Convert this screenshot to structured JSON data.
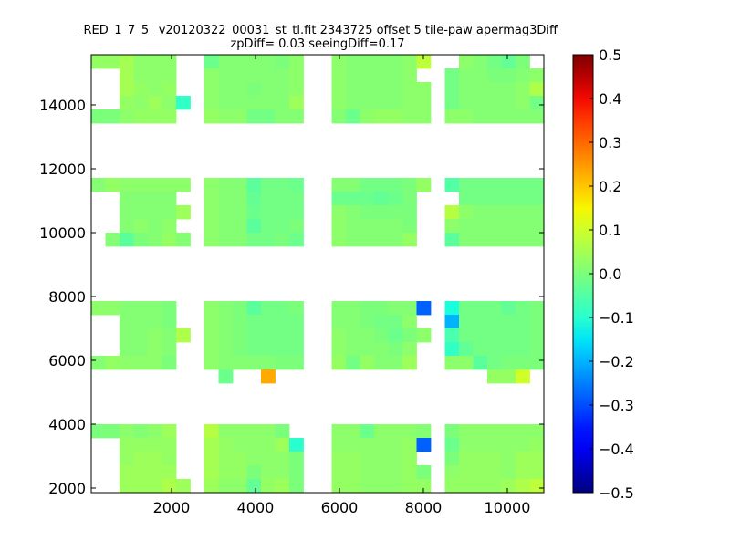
{
  "chart_data": {
    "type": "heatmap",
    "title": "_RED_1_7_5_ v20120322_00031_st_tl.fit 2343725 offset 5 tile-paw apermag3Diff",
    "subtitle": "zpDiff= 0.03 seeingDiff=0.17",
    "xlabel": "",
    "ylabel": "",
    "xlim": [
      87,
      10870
    ],
    "ylim": [
      1857,
      15571
    ],
    "xticks": [
      2000,
      4000,
      6000,
      8000,
      10000
    ],
    "yticks": [
      2000,
      4000,
      6000,
      8000,
      10000,
      12000,
      14000
    ],
    "xtick_labels": [
      "2000",
      "4000",
      "6000",
      "8000",
      "10000"
    ],
    "ytick_labels": [
      "2000",
      "4000",
      "6000",
      "8000",
      "10000",
      "12000",
      "14000"
    ],
    "colormap": "jet",
    "clim": [
      -0.5,
      0.5
    ],
    "colorbar_ticks": [
      0.5,
      0.4,
      0.3,
      0.2,
      0.1,
      0.0,
      -0.1,
      -0.2,
      -0.3,
      -0.4,
      -0.5
    ],
    "colorbar_tick_labels": [
      "0.5",
      "0.4",
      "0.3",
      "0.2",
      "0.1",
      "0.0",
      "−0.1",
      "−0.2",
      "−0.3",
      "−0.4",
      "−0.5"
    ],
    "grid_rows_order": "top-to-bottom",
    "grid": [
      [
        0.03,
        0.03,
        0.05,
        0.02,
        0.02,
        0.02,
        null,
        null,
        -0.02,
        0.01,
        0.01,
        0.01,
        0.01,
        0.0,
        0.02,
        null,
        null,
        0.02,
        0.01,
        0.01,
        0.01,
        0.01,
        0.02,
        0.08,
        null,
        null,
        0.02,
        0.01,
        -0.01,
        -0.03,
        0.0,
        null
      ],
      [
        null,
        null,
        0.05,
        0.02,
        0.02,
        0.02,
        null,
        null,
        0.02,
        0.01,
        0.01,
        0.01,
        0.01,
        0.01,
        0.02,
        null,
        null,
        0.02,
        0.01,
        0.01,
        0.01,
        0.01,
        0.02,
        null,
        null,
        -0.01,
        0.01,
        0.01,
        0.0,
        0.0,
        0.01,
        0.02
      ],
      [
        null,
        null,
        0.05,
        0.03,
        0.02,
        0.03,
        null,
        null,
        0.02,
        0.01,
        0.01,
        0.0,
        0.01,
        0.01,
        0.02,
        null,
        null,
        0.02,
        0.01,
        0.01,
        0.01,
        0.01,
        0.02,
        0.02,
        null,
        -0.01,
        0.01,
        0.01,
        0.01,
        0.01,
        0.02,
        0.06
      ],
      [
        null,
        null,
        0.03,
        0.02,
        0.04,
        0.02,
        -0.09,
        null,
        0.02,
        0.01,
        0.01,
        0.01,
        0.01,
        0.01,
        0.04,
        null,
        null,
        0.02,
        0.01,
        0.01,
        0.01,
        0.01,
        0.02,
        0.02,
        null,
        -0.01,
        0.01,
        0.01,
        0.01,
        0.01,
        0.02,
        -0.01
      ],
      [
        0.0,
        0.0,
        0.02,
        0.03,
        0.03,
        0.03,
        null,
        null,
        0.03,
        0.02,
        0.02,
        -0.01,
        -0.01,
        0.01,
        0.01,
        null,
        null,
        0.01,
        -0.02,
        0.02,
        0.03,
        0.03,
        0.02,
        0.02,
        null,
        0.02,
        0.02,
        0.01,
        0.01,
        0.01,
        0.01,
        0.01
      ],
      [
        null,
        null,
        null,
        null,
        null,
        null,
        null,
        null,
        null,
        null,
        null,
        null,
        null,
        null,
        null,
        null,
        null,
        null,
        null,
        null,
        null,
        null,
        null,
        null,
        null,
        null,
        null,
        null,
        null,
        null,
        null,
        null
      ],
      [
        null,
        null,
        null,
        null,
        null,
        null,
        null,
        null,
        null,
        null,
        null,
        null,
        null,
        null,
        null,
        null,
        null,
        null,
        null,
        null,
        null,
        null,
        null,
        null,
        null,
        null,
        null,
        null,
        null,
        null,
        null,
        null
      ],
      [
        null,
        null,
        null,
        null,
        null,
        null,
        null,
        null,
        null,
        null,
        null,
        null,
        null,
        null,
        null,
        null,
        null,
        null,
        null,
        null,
        null,
        null,
        null,
        null,
        null,
        null,
        null,
        null,
        null,
        null,
        null,
        null
      ],
      [
        null,
        null,
        null,
        null,
        null,
        null,
        null,
        null,
        null,
        null,
        null,
        null,
        null,
        null,
        null,
        null,
        null,
        null,
        null,
        null,
        null,
        null,
        null,
        null,
        null,
        null,
        null,
        null,
        null,
        null,
        null,
        null
      ],
      [
        0.01,
        0.03,
        0.02,
        0.02,
        0.02,
        0.02,
        0.02,
        null,
        0.02,
        0.01,
        0.01,
        -0.04,
        -0.01,
        -0.01,
        -0.02,
        null,
        null,
        0.01,
        0.01,
        -0.01,
        -0.01,
        -0.01,
        0.0,
        0.03,
        null,
        -0.05,
        -0.01,
        -0.01,
        -0.01,
        -0.01,
        -0.01,
        -0.01
      ],
      [
        null,
        null,
        0.01,
        0.01,
        0.01,
        0.01,
        null,
        null,
        0.02,
        0.01,
        0.01,
        -0.03,
        -0.01,
        -0.01,
        -0.01,
        null,
        null,
        -0.02,
        -0.02,
        -0.02,
        -0.03,
        -0.02,
        0.0,
        null,
        null,
        null,
        -0.01,
        -0.01,
        -0.01,
        -0.01,
        -0.01,
        -0.01
      ],
      [
        null,
        null,
        0.01,
        0.01,
        0.01,
        0.01,
        0.04,
        null,
        0.02,
        0.01,
        0.01,
        -0.02,
        -0.01,
        -0.01,
        -0.01,
        null,
        null,
        0.02,
        0.01,
        0.0,
        0.0,
        0.0,
        0.0,
        null,
        null,
        0.07,
        0.02,
        0.01,
        0.01,
        0.01,
        0.01,
        0.01
      ],
      [
        null,
        null,
        0.01,
        0.02,
        0.01,
        0.02,
        null,
        null,
        0.02,
        0.01,
        0.01,
        -0.04,
        -0.01,
        -0.01,
        0.0,
        null,
        null,
        0.02,
        0.01,
        0.01,
        0.01,
        0.01,
        0.0,
        null,
        null,
        0.02,
        0.01,
        0.01,
        0.01,
        0.01,
        0.01,
        0.01
      ],
      [
        null,
        0.01,
        -0.04,
        0.0,
        0.01,
        0.03,
        0.01,
        null,
        0.02,
        0.01,
        0.01,
        -0.01,
        -0.01,
        0.0,
        -0.02,
        null,
        null,
        0.02,
        0.01,
        0.01,
        0.01,
        0.01,
        0.03,
        null,
        null,
        -0.04,
        0.01,
        0.01,
        0.01,
        0.01,
        0.01,
        0.01
      ],
      [
        null,
        null,
        null,
        null,
        null,
        null,
        null,
        null,
        null,
        null,
        null,
        null,
        null,
        null,
        null,
        null,
        null,
        null,
        null,
        null,
        null,
        null,
        null,
        null,
        null,
        null,
        null,
        null,
        null,
        null,
        null,
        null
      ],
      [
        null,
        null,
        null,
        null,
        null,
        null,
        null,
        null,
        null,
        null,
        null,
        null,
        null,
        null,
        null,
        null,
        null,
        null,
        null,
        null,
        null,
        null,
        null,
        null,
        null,
        null,
        null,
        null,
        null,
        null,
        null,
        null
      ],
      [
        null,
        null,
        null,
        null,
        null,
        null,
        null,
        null,
        null,
        null,
        null,
        null,
        null,
        null,
        null,
        null,
        null,
        null,
        null,
        null,
        null,
        null,
        null,
        null,
        null,
        null,
        null,
        null,
        null,
        null,
        null,
        null
      ],
      [
        null,
        null,
        null,
        null,
        null,
        null,
        null,
        null,
        null,
        null,
        null,
        null,
        null,
        null,
        null,
        null,
        null,
        null,
        null,
        null,
        null,
        null,
        null,
        null,
        null,
        null,
        null,
        null,
        null,
        null,
        null,
        null
      ],
      [
        0.02,
        0.02,
        0.01,
        0.01,
        0.01,
        0.0,
        null,
        null,
        0.02,
        0.01,
        0.0,
        -0.04,
        -0.01,
        -0.01,
        0.0,
        null,
        null,
        0.01,
        0.01,
        0.0,
        0.0,
        0.01,
        0.01,
        -0.28,
        null,
        -0.12,
        -0.01,
        -0.01,
        -0.01,
        -0.03,
        -0.01,
        0.0
      ],
      [
        null,
        null,
        0.01,
        0.01,
        0.01,
        0.0,
        null,
        null,
        0.02,
        0.01,
        0.0,
        -0.01,
        -0.01,
        -0.01,
        -0.01,
        null,
        null,
        0.01,
        0.01,
        0.0,
        -0.01,
        -0.01,
        0.02,
        null,
        null,
        -0.2,
        -0.01,
        -0.01,
        -0.01,
        -0.01,
        -0.01,
        0.0
      ],
      [
        null,
        null,
        0.01,
        0.01,
        0.02,
        0.01,
        0.06,
        null,
        0.02,
        0.01,
        0.0,
        -0.01,
        -0.01,
        -0.01,
        -0.01,
        null,
        null,
        0.02,
        0.01,
        0.01,
        0.0,
        -0.02,
        0.0,
        0.02,
        null,
        -0.06,
        -0.01,
        -0.01,
        -0.01,
        -0.01,
        -0.01,
        0.0
      ],
      [
        null,
        null,
        0.01,
        0.01,
        0.02,
        0.01,
        null,
        null,
        0.02,
        0.01,
        0.0,
        -0.01,
        -0.01,
        -0.01,
        -0.01,
        null,
        null,
        0.02,
        0.01,
        0.01,
        0.01,
        0.0,
        0.02,
        null,
        null,
        -0.09,
        -0.03,
        -0.01,
        -0.01,
        -0.01,
        -0.01,
        0.0
      ],
      [
        0.01,
        0.03,
        0.02,
        0.02,
        0.02,
        0.0,
        null,
        null,
        0.02,
        0.01,
        0.01,
        0.01,
        0.01,
        0.0,
        0.0,
        null,
        null,
        0.03,
        -0.01,
        0.03,
        0.01,
        0.01,
        0.04,
        null,
        null,
        0.02,
        0.02,
        -0.04,
        -0.01,
        0.0,
        0.0,
        0.0
      ],
      [
        null,
        null,
        null,
        null,
        null,
        null,
        null,
        null,
        null,
        -0.02,
        null,
        null,
        0.23,
        null,
        null,
        null,
        null,
        null,
        null,
        null,
        null,
        null,
        null,
        null,
        null,
        null,
        null,
        null,
        0.03,
        0.03,
        0.1,
        null
      ],
      [
        null,
        null,
        null,
        null,
        null,
        null,
        null,
        null,
        null,
        null,
        null,
        null,
        null,
        null,
        null,
        null,
        null,
        null,
        null,
        null,
        null,
        null,
        null,
        null,
        null,
        null,
        null,
        null,
        null,
        null,
        null,
        null
      ],
      [
        null,
        null,
        null,
        null,
        null,
        null,
        null,
        null,
        null,
        null,
        null,
        null,
        null,
        null,
        null,
        null,
        null,
        null,
        null,
        null,
        null,
        null,
        null,
        null,
        null,
        null,
        null,
        null,
        null,
        null,
        null,
        null
      ],
      [
        null,
        null,
        null,
        null,
        null,
        null,
        null,
        null,
        null,
        null,
        null,
        null,
        null,
        null,
        null,
        null,
        null,
        null,
        null,
        null,
        null,
        null,
        null,
        null,
        null,
        null,
        null,
        null,
        null,
        null,
        null,
        null
      ],
      [
        0.0,
        0.0,
        0.02,
        0.01,
        0.02,
        0.04,
        null,
        null,
        0.07,
        0.02,
        0.02,
        0.02,
        0.02,
        0.0,
        null,
        null,
        null,
        0.02,
        0.02,
        -0.02,
        0.02,
        0.02,
        0.02,
        0.01,
        null,
        0.0,
        0.02,
        0.02,
        0.02,
        0.02,
        0.02,
        0.02
      ],
      [
        null,
        null,
        0.03,
        0.03,
        0.03,
        0.03,
        null,
        null,
        0.05,
        0.03,
        0.02,
        0.02,
        0.02,
        0.04,
        -0.1,
        null,
        null,
        0.02,
        0.02,
        0.02,
        0.02,
        0.02,
        0.03,
        -0.28,
        null,
        -0.02,
        0.02,
        0.02,
        0.02,
        0.02,
        0.02,
        0.03
      ],
      [
        null,
        null,
        0.03,
        0.04,
        0.04,
        0.03,
        null,
        null,
        0.05,
        0.03,
        0.03,
        0.02,
        0.02,
        0.02,
        0.0,
        null,
        null,
        0.03,
        0.03,
        0.02,
        0.02,
        0.02,
        0.03,
        null,
        null,
        0.0,
        0.03,
        0.03,
        0.03,
        0.02,
        0.04,
        0.04
      ],
      [
        null,
        null,
        0.04,
        0.04,
        0.04,
        0.04,
        null,
        null,
        0.05,
        0.03,
        0.03,
        0.0,
        0.02,
        0.02,
        0.0,
        null,
        null,
        0.03,
        0.03,
        0.02,
        0.02,
        0.02,
        0.03,
        0.0,
        null,
        0.02,
        0.03,
        0.03,
        0.03,
        0.02,
        0.04,
        0.04
      ],
      [
        null,
        null,
        0.04,
        0.04,
        0.04,
        0.06,
        0.04,
        null,
        0.04,
        0.02,
        0.02,
        -0.03,
        0.03,
        0.04,
        0.0,
        null,
        null,
        0.03,
        0.03,
        0.02,
        0.02,
        0.02,
        0.03,
        0.03,
        null,
        0.03,
        0.03,
        0.03,
        0.03,
        0.04,
        0.06,
        0.08
      ]
    ]
  }
}
